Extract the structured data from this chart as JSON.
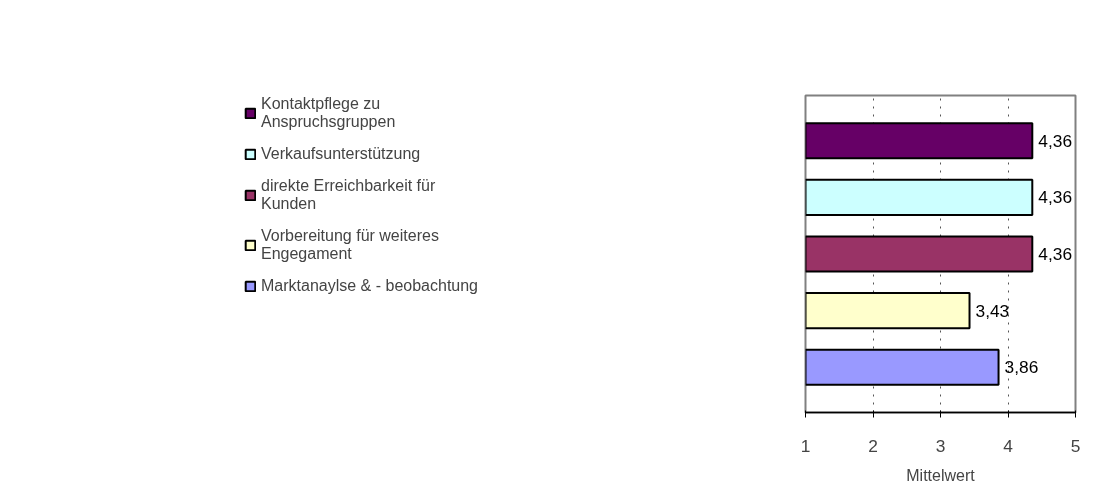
{
  "chart_data": {
    "type": "bar",
    "orientation": "horizontal",
    "xlabel": "Mittelwert",
    "categories": [
      null
    ],
    "series": [
      {
        "name": "Kontaktpflege zu Anspruchsgruppen",
        "color": "#660066",
        "values": [
          4.36
        ],
        "value_labels": [
          "4,36"
        ]
      },
      {
        "name": "Verkaufsunterstützung",
        "color": "#ccffff",
        "values": [
          4.36
        ],
        "value_labels": [
          "4,36"
        ]
      },
      {
        "name": "direkte Erreichbarkeit für Kunden",
        "color": "#993366",
        "values": [
          4.36
        ],
        "value_labels": [
          "4,36"
        ]
      },
      {
        "name": "Vorbereitung für weiteres Engegament",
        "color": "#ffffcc",
        "values": [
          3.43
        ],
        "value_labels": [
          "3,43"
        ]
      },
      {
        "name": "Marktanaylse & - beobachtung",
        "color": "#9999ff",
        "values": [
          3.86
        ],
        "value_labels": [
          "3,86"
        ]
      }
    ],
    "xlim": [
      1,
      5
    ],
    "xticks": [
      1,
      2,
      3,
      4,
      5
    ],
    "grid": "x",
    "legend": "left"
  }
}
